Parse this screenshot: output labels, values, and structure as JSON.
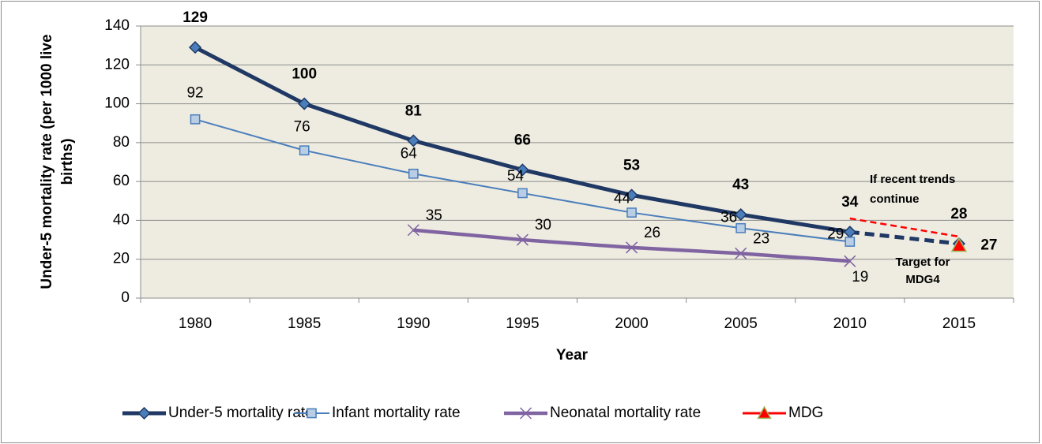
{
  "chart_data": {
    "type": "line",
    "y_label": [
      "Under-5 mortality rate (per 1000 live",
      "births)"
    ],
    "x_label": "Year",
    "categories": [
      "1980",
      "1985",
      "1990",
      "1995",
      "2000",
      "2005",
      "2010",
      "2015"
    ],
    "series": [
      {
        "name": "Under-5 mortality rate",
        "color": "#1f3864",
        "marker": "diamond",
        "values": [
          129,
          100,
          81,
          66,
          53,
          43,
          34,
          28
        ]
      },
      {
        "name": "Infant mortality rate",
        "color": "#4a7ebb",
        "marker": "square",
        "values": [
          92,
          76,
          64,
          54,
          44,
          36,
          29,
          null
        ]
      },
      {
        "name": "Neonatal mortality rate",
        "color": "#8064a2",
        "marker": "x",
        "values": [
          null,
          null,
          35,
          30,
          26,
          23,
          19,
          null
        ]
      },
      {
        "name": "MDG",
        "color": "#ff0000",
        "marker": "triangle",
        "values": [
          null,
          null,
          null,
          null,
          null,
          null,
          null,
          27
        ]
      }
    ],
    "annotations": [
      [
        "If recent trends",
        "continue"
      ],
      [
        "Target for",
        "MDG4"
      ]
    ],
    "ylim": [
      0,
      140
    ],
    "yticks": [
      0,
      20,
      40,
      60,
      80,
      100,
      120,
      140
    ],
    "grid": true
  }
}
